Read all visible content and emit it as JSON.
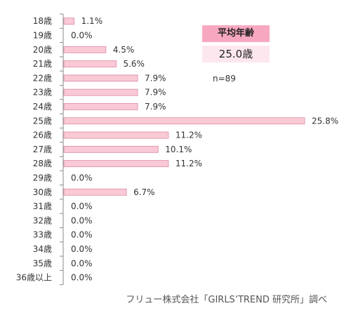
{
  "chart_data": {
    "type": "bar",
    "orientation": "horizontal",
    "categories": [
      "18歳",
      "19歳",
      "20歳",
      "21歳",
      "22歳",
      "23歳",
      "24歳",
      "25歳",
      "26歳",
      "27歳",
      "28歳",
      "29歳",
      "30歳",
      "31歳",
      "32歳",
      "33歳",
      "34歳",
      "35歳",
      "36歳以上"
    ],
    "values": [
      1.1,
      0.0,
      4.5,
      5.6,
      7.9,
      7.9,
      7.9,
      25.8,
      11.2,
      10.1,
      11.2,
      0.0,
      6.7,
      0.0,
      0.0,
      0.0,
      0.0,
      0.0,
      0.0
    ],
    "value_labels": [
      "1.1%",
      "0.0%",
      "4.5%",
      "5.6%",
      "7.9%",
      "7.9%",
      "7.9%",
      "25.8%",
      "11.2%",
      "10.1%",
      "11.2%",
      "0.0%",
      "6.7%",
      "0.0%",
      "0.0%",
      "0.0%",
      "0.0%",
      "0.0%",
      "0.0%"
    ],
    "xlim": [
      0,
      25.8
    ],
    "grid": false,
    "colors": {
      "bar_fill": "#f9c9d6",
      "bar_stroke": "#d98aa1"
    }
  },
  "summary": {
    "title": "平均年齢",
    "value": "25.0歳",
    "n": "n=89"
  },
  "source": "フリュー株式会社「GIRLS’TREND 研究所」調べ"
}
